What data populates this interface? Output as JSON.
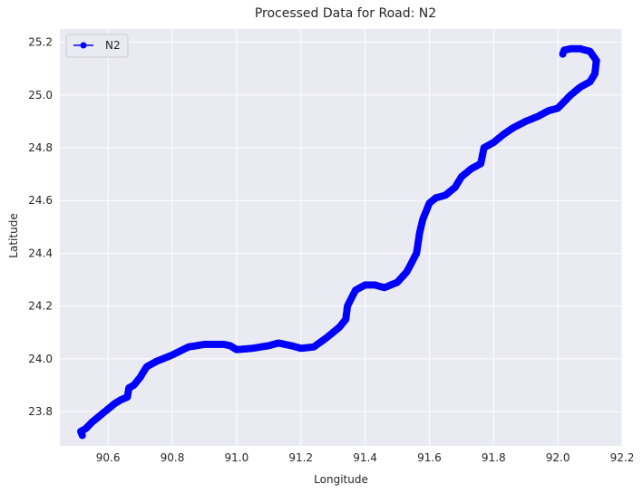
{
  "chart_data": {
    "type": "line",
    "title": "Processed Data for Road: N2",
    "xlabel": "Longitude",
    "ylabel": "Latitude",
    "xlim": [
      90.45,
      92.2
    ],
    "ylim": [
      23.67,
      25.25
    ],
    "xticks": [
      90.6,
      90.8,
      91.0,
      91.2,
      91.4,
      91.6,
      91.8,
      92.0,
      92.2
    ],
    "yticks": [
      23.8,
      24.0,
      24.2,
      24.4,
      24.6,
      24.8,
      25.0,
      25.2
    ],
    "xtick_labels": [
      "90.6",
      "90.8",
      "91.0",
      "91.2",
      "91.4",
      "91.6",
      "91.8",
      "92.0",
      "92.2"
    ],
    "ytick_labels": [
      "23.8",
      "24.0",
      "24.2",
      "24.4",
      "24.6",
      "24.8",
      "25.0",
      "25.2"
    ],
    "grid": true,
    "legend_position": "top-left",
    "colors": {
      "series": "#0000ff",
      "plot_bg": "#eaeaf2",
      "grid": "#ffffff"
    },
    "series": [
      {
        "name": "N2",
        "marker": "circle",
        "points": [
          [
            90.52,
            23.71
          ],
          [
            90.515,
            23.725
          ],
          [
            90.53,
            23.735
          ],
          [
            90.55,
            23.76
          ],
          [
            90.57,
            23.78
          ],
          [
            90.6,
            23.81
          ],
          [
            90.62,
            23.83
          ],
          [
            90.64,
            23.845
          ],
          [
            90.66,
            23.855
          ],
          [
            90.665,
            23.89
          ],
          [
            90.68,
            23.9
          ],
          [
            90.7,
            23.93
          ],
          [
            90.72,
            23.97
          ],
          [
            90.75,
            23.99
          ],
          [
            90.8,
            24.015
          ],
          [
            90.85,
            24.045
          ],
          [
            90.9,
            24.055
          ],
          [
            90.96,
            24.055
          ],
          [
            90.98,
            24.05
          ],
          [
            91.0,
            24.035
          ],
          [
            91.05,
            24.04
          ],
          [
            91.1,
            24.05
          ],
          [
            91.13,
            24.06
          ],
          [
            91.17,
            24.05
          ],
          [
            91.2,
            24.04
          ],
          [
            91.24,
            24.045
          ],
          [
            91.28,
            24.08
          ],
          [
            91.32,
            24.12
          ],
          [
            91.34,
            24.15
          ],
          [
            91.345,
            24.2
          ],
          [
            91.37,
            24.26
          ],
          [
            91.4,
            24.28
          ],
          [
            91.43,
            24.28
          ],
          [
            91.46,
            24.27
          ],
          [
            91.5,
            24.29
          ],
          [
            91.53,
            24.33
          ],
          [
            91.56,
            24.4
          ],
          [
            91.57,
            24.48
          ],
          [
            91.58,
            24.53
          ],
          [
            91.59,
            24.56
          ],
          [
            91.6,
            24.59
          ],
          [
            91.62,
            24.61
          ],
          [
            91.65,
            24.62
          ],
          [
            91.68,
            24.65
          ],
          [
            91.7,
            24.69
          ],
          [
            91.73,
            24.72
          ],
          [
            91.76,
            24.74
          ],
          [
            91.77,
            24.8
          ],
          [
            91.8,
            24.82
          ],
          [
            91.83,
            24.85
          ],
          [
            91.86,
            24.875
          ],
          [
            91.9,
            24.9
          ],
          [
            91.94,
            24.92
          ],
          [
            91.97,
            24.94
          ],
          [
            92.0,
            24.95
          ],
          [
            92.04,
            25.0
          ],
          [
            92.07,
            25.03
          ],
          [
            92.1,
            25.05
          ],
          [
            92.115,
            25.08
          ],
          [
            92.12,
            25.13
          ],
          [
            92.1,
            25.165
          ],
          [
            92.07,
            25.175
          ],
          [
            92.04,
            25.175
          ],
          [
            92.02,
            25.17
          ],
          [
            92.015,
            25.155
          ]
        ]
      }
    ]
  }
}
